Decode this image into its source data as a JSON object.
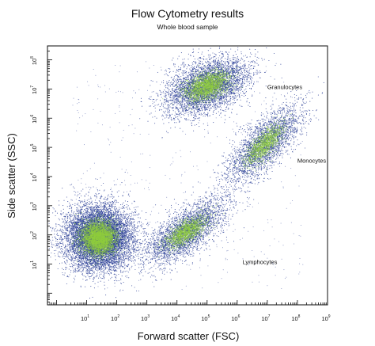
{
  "chart_data": {
    "type": "scatter",
    "title": "Flow Cytometry results",
    "subtitle": "Whole blood sample",
    "xlabel": "Forward scatter (FSC)",
    "ylabel": "Side scatter (SSC)",
    "xscale": "log",
    "yscale": "log",
    "xlim": [
      0.5,
      1000000000
    ],
    "ylim": [
      0.4,
      300000000
    ],
    "x_ticks": [
      {
        "base": "10",
        "exp": "1",
        "value": 10
      },
      {
        "base": "10",
        "exp": "2",
        "value": 100
      },
      {
        "base": "10",
        "exp": "3",
        "value": 1000
      },
      {
        "base": "10",
        "exp": "4",
        "value": 10000
      },
      {
        "base": "10",
        "exp": "5",
        "value": 100000
      },
      {
        "base": "10",
        "exp": "6",
        "value": 1000000
      },
      {
        "base": "10",
        "exp": "7",
        "value": 10000000
      },
      {
        "base": "10",
        "exp": "8",
        "value": 100000000
      },
      {
        "base": "10",
        "exp": "9",
        "value": 1000000000
      }
    ],
    "y_ticks": [
      {
        "base": "10",
        "exp": "1",
        "value": 10
      },
      {
        "base": "10",
        "exp": "2",
        "value": 100
      },
      {
        "base": "10",
        "exp": "3",
        "value": 1000
      },
      {
        "base": "10",
        "exp": "4",
        "value": 10000
      },
      {
        "base": "10",
        "exp": "5",
        "value": 100000
      },
      {
        "base": "10",
        "exp": "6",
        "value": 1000000
      },
      {
        "base": "10",
        "exp": "7",
        "value": 10000000
      },
      {
        "base": "10",
        "exp": "8",
        "value": 100000000
      }
    ],
    "grid": false,
    "series_colors": {
      "outer": "#2b3f97",
      "core": "#8fcd3c"
    },
    "populations": [
      {
        "label": "",
        "center_log": [
          1.4,
          1.9
        ],
        "spread_log": [
          0.55,
          0.55
        ],
        "rotation_deg": 40,
        "points": 9000
      },
      {
        "label": "Granulocytes",
        "center_log": [
          5.0,
          7.1
        ],
        "spread_log": [
          0.75,
          0.42
        ],
        "rotation_deg": 25,
        "points": 4500
      },
      {
        "label": "Monocytes",
        "center_log": [
          6.9,
          5.1
        ],
        "spread_log": [
          0.85,
          0.33
        ],
        "rotation_deg": 47,
        "points": 2800
      },
      {
        "label": "Lymphocytes",
        "center_log": [
          4.3,
          2.1
        ],
        "spread_log": [
          0.8,
          0.33
        ],
        "rotation_deg": 38,
        "points": 3200
      }
    ],
    "annotations": [
      {
        "text": "Granulocytes",
        "x": 10000000,
        "y": 10000000
      },
      {
        "text": "Monocytes",
        "x": 100000000,
        "y": 30000
      },
      {
        "text": "Lymphocytes",
        "x": 1500000,
        "y": 10
      }
    ]
  }
}
